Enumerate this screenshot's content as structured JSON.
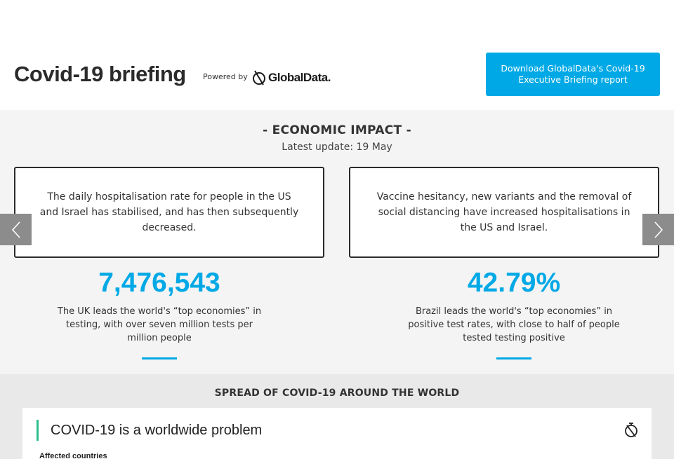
{
  "header": {
    "title": "Covid-19 briefing",
    "powered_by": "Powered by",
    "brand": "GlobalData.",
    "download_label": "Download GlobalData's Covid-19 Executive Briefing report"
  },
  "impact": {
    "title": "- ECONOMIC IMPACT -",
    "update": "Latest update: 19 May",
    "cards": [
      {
        "text": "The daily hospitalisation rate for people in the US and Israel has stabilised, and has then subsequently decreased."
      },
      {
        "text": "Vaccine hesitancy, new variants and the removal of social distancing have increased hospitalisations in the US and Israel."
      }
    ],
    "stats": [
      {
        "value": "7,476,543",
        "desc": "The UK leads the world's “top economies” in testing, with over seven million tests per million people"
      },
      {
        "value": "42.79%",
        "desc": "Brazil leads the world's “top economies” in positive test rates, with close to half of people tested testing positive"
      }
    ]
  },
  "spread": {
    "title": "SPREAD OF COVID-19 AROUND THE WORLD",
    "embed_title": "COVID-19 is a worldwide problem",
    "embed_sub": "Affected countries"
  },
  "colors": {
    "accent": "#00a9e6",
    "embed_accent": "#2bbf8a",
    "arrow_bg": "#8c8c8c"
  },
  "icons": {
    "prev": "chevron-left-icon",
    "next": "chevron-right-icon",
    "brand": "globaldata-logo-icon",
    "embed": "timer-icon"
  }
}
